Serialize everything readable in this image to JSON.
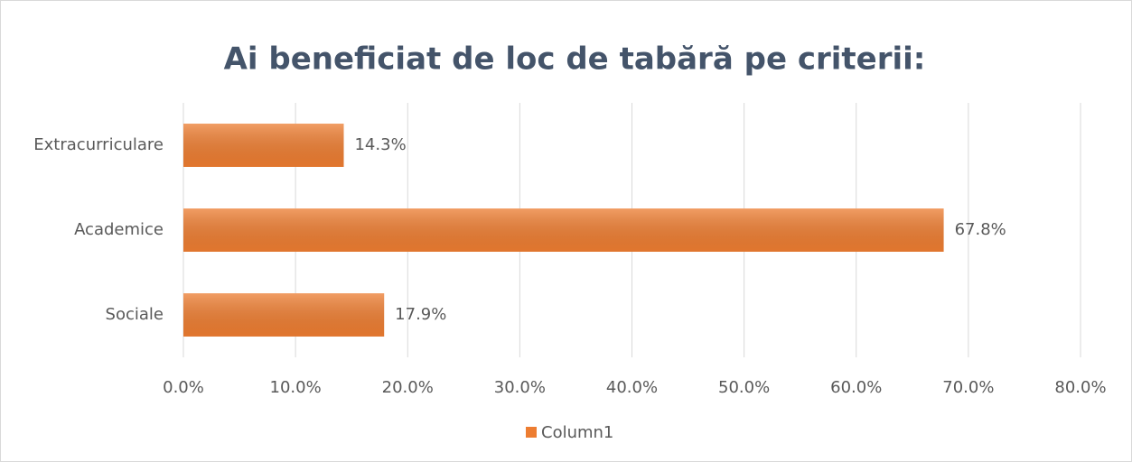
{
  "chart_data": {
    "type": "hbar",
    "title": "Ai beneficiat de loc de tabără pe criterii:",
    "categories": [
      "Extracurriculare",
      "Academice",
      "Sociale"
    ],
    "series": [
      {
        "name": "Column1",
        "color": "#ed7d31",
        "values": [
          14.3,
          67.8,
          17.9
        ],
        "value_labels": [
          "14.3%",
          "67.8%",
          "17.9%"
        ]
      }
    ],
    "xlim": [
      0,
      80
    ],
    "xticks": [
      {
        "value": 0,
        "label": "0.0%"
      },
      {
        "value": 10,
        "label": "10.0%"
      },
      {
        "value": 20,
        "label": "20.0%"
      },
      {
        "value": 30,
        "label": "30.0%"
      },
      {
        "value": 40,
        "label": "40.0%"
      },
      {
        "value": 50,
        "label": "50.0%"
      },
      {
        "value": 60,
        "label": "60.0%"
      },
      {
        "value": 70,
        "label": "70.0%"
      },
      {
        "value": 80,
        "label": "80.0%"
      }
    ],
    "grid": true,
    "legend": "bottom"
  }
}
